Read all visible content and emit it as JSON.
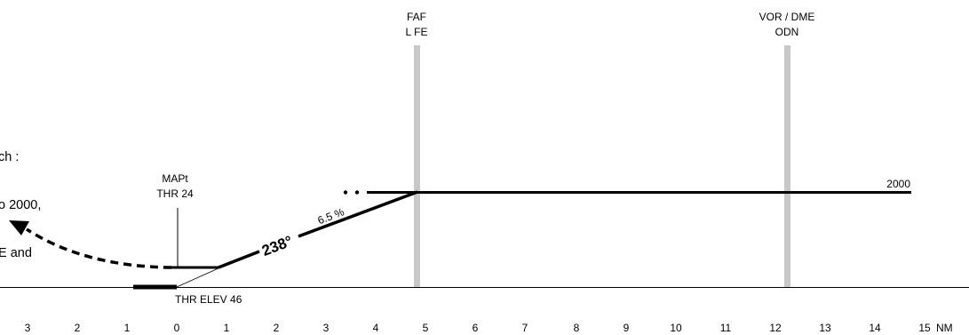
{
  "missed_approach_note": {
    "lines": [
      "ch :",
      "o 2000,",
      "E and"
    ]
  },
  "fixes": {
    "faf": {
      "label_1": "FAF",
      "label_2": "L FE",
      "distance_nm": 4.8
    },
    "vor": {
      "label_1": "VOR / DME",
      "label_2": "ODN",
      "distance_nm": 12.3
    },
    "mapt": {
      "label_1": "MAPt",
      "label_2": "THR 24",
      "distance_nm": 0
    }
  },
  "profile": {
    "altitude_label": "2000",
    "gradient_label": "6.5 %",
    "course_label": "238°",
    "threshold_label": "THR ELEV 46"
  },
  "axis": {
    "unit": "NM",
    "ticks": [
      "3",
      "2",
      "1",
      "0",
      "1",
      "2",
      "3",
      "4",
      "5",
      "6",
      "7",
      "8",
      "9",
      "10",
      "11",
      "12",
      "13",
      "14",
      "15"
    ],
    "colors": {
      "fix_bar": "#c8c8c8",
      "line": "#000000"
    }
  }
}
